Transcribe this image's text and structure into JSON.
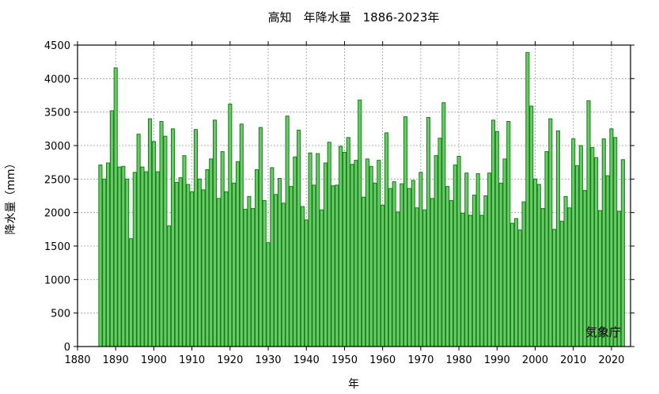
{
  "chart_data": {
    "type": "bar",
    "title": "高知　年降水量　1886-2023年",
    "xlabel": "年",
    "ylabel": "降水量（mm）",
    "credit": "気象庁",
    "xlim": [
      1880,
      2025
    ],
    "ylim": [
      0,
      4500
    ],
    "x_ticks": [
      1880,
      1890,
      1900,
      1910,
      1920,
      1930,
      1940,
      1950,
      1960,
      1970,
      1980,
      1990,
      2000,
      2010,
      2020
    ],
    "y_ticks": [
      0,
      500,
      1000,
      1500,
      2000,
      2500,
      3000,
      3500,
      4000,
      4500
    ],
    "grid": true,
    "bar_color": "#66cc66",
    "bar_edge_color": "#1a7a1a",
    "start_year": 1886,
    "values": [
      2710,
      2500,
      2740,
      3520,
      4160,
      2680,
      2690,
      2500,
      1610,
      2600,
      3170,
      2680,
      2610,
      3400,
      3060,
      2610,
      3360,
      3140,
      1800,
      3250,
      2450,
      2520,
      2850,
      2420,
      2310,
      3240,
      2500,
      2340,
      2640,
      2800,
      3380,
      2210,
      2910,
      2310,
      3620,
      2440,
      2760,
      3320,
      2050,
      2240,
      2060,
      2640,
      3270,
      2180,
      1550,
      2670,
      2270,
      2510,
      2140,
      3440,
      2390,
      2830,
      3230,
      2090,
      1890,
      2890,
      2410,
      2880,
      2040,
      2740,
      3050,
      2400,
      2410,
      2990,
      2900,
      3120,
      2720,
      2780,
      3680,
      2230,
      2800,
      2690,
      2440,
      2780,
      2110,
      3190,
      2360,
      2460,
      2010,
      2430,
      3430,
      2360,
      2480,
      2070,
      2600,
      2040,
      3420,
      2210,
      2850,
      3110,
      3640,
      2390,
      2180,
      2710,
      2840,
      1990,
      2590,
      1960,
      2260,
      2580,
      1960,
      2250,
      2590,
      3380,
      3210,
      2440,
      2800,
      3360,
      1840,
      1910,
      1740,
      2160,
      4390,
      3590,
      2500,
      2420,
      2060,
      2910,
      3400,
      1750,
      3220,
      1870,
      2240,
      2070,
      3100,
      2700,
      3000,
      2330,
      3670,
      2970,
      2820,
      2030,
      3100,
      2550,
      3250,
      3120,
      2020,
      2790
    ]
  }
}
